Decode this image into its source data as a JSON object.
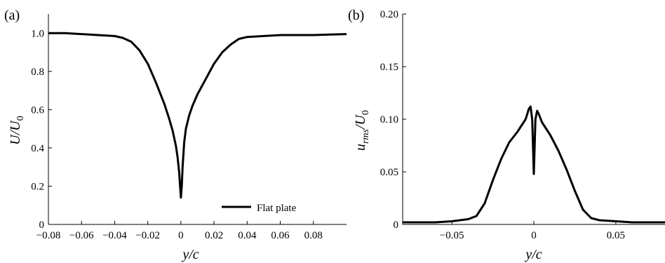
{
  "chart_data": [
    {
      "type": "line",
      "panel_label": "(a)",
      "xlabel": "y/c",
      "ylabel": "U/U0",
      "xlim": [
        -0.08,
        0.1
      ],
      "ylim": [
        0,
        1.1
      ],
      "xticks": [
        -0.08,
        -0.06,
        -0.04,
        -0.02,
        0,
        0.02,
        0.04,
        0.06,
        0.08
      ],
      "xtick_labels": [
        "−0.08",
        "−0.06",
        "−0.04",
        "−0.02",
        "0",
        "0.02",
        "0.04",
        "0.06",
        "0.08"
      ],
      "yticks": [
        0,
        0.2,
        0.4,
        0.6,
        0.8,
        1.0
      ],
      "ytick_labels": [
        "0",
        "0.2",
        "0.4",
        "0.6",
        "0.8",
        "1.0"
      ],
      "grid": false,
      "legend_position": "bottom-right",
      "series": [
        {
          "name": "Flat plate",
          "x": [
            -0.08,
            -0.07,
            -0.06,
            -0.05,
            -0.04,
            -0.035,
            -0.03,
            -0.025,
            -0.02,
            -0.015,
            -0.01,
            -0.007,
            -0.005,
            -0.003,
            -0.002,
            -0.001,
            -0.0005,
            0,
            0.0005,
            0.001,
            0.002,
            0.003,
            0.005,
            0.007,
            0.01,
            0.015,
            0.02,
            0.025,
            0.03,
            0.035,
            0.04,
            0.05,
            0.06,
            0.07,
            0.08,
            0.09,
            0.1
          ],
          "y": [
            1.0,
            1.0,
            0.995,
            0.99,
            0.985,
            0.975,
            0.955,
            0.91,
            0.84,
            0.74,
            0.63,
            0.55,
            0.49,
            0.41,
            0.35,
            0.27,
            0.2,
            0.14,
            0.2,
            0.3,
            0.43,
            0.5,
            0.57,
            0.62,
            0.68,
            0.76,
            0.84,
            0.9,
            0.94,
            0.97,
            0.98,
            0.985,
            0.99,
            0.99,
            0.99,
            0.993,
            0.995
          ]
        }
      ]
    },
    {
      "type": "line",
      "panel_label": "(b)",
      "xlabel": "y/c",
      "ylabel": "u_rms/U0",
      "xlim": [
        -0.08,
        0.08
      ],
      "ylim": [
        0,
        0.2
      ],
      "xticks": [
        -0.05,
        0,
        0.05
      ],
      "xtick_labels": [
        "−0.05",
        "0",
        "0.05"
      ],
      "yticks": [
        0,
        0.05,
        0.1,
        0.15,
        0.2
      ],
      "ytick_labels": [
        "0",
        "0.05",
        "0.10",
        "0.15",
        "0.20"
      ],
      "grid": false,
      "series": [
        {
          "name": "",
          "x": [
            -0.08,
            -0.06,
            -0.05,
            -0.04,
            -0.035,
            -0.03,
            -0.025,
            -0.02,
            -0.015,
            -0.01,
            -0.005,
            -0.003,
            -0.002,
            -0.001,
            0,
            0.001,
            0.002,
            0.003,
            0.005,
            0.01,
            0.015,
            0.02,
            0.025,
            0.03,
            0.035,
            0.04,
            0.05,
            0.06,
            0.07,
            0.08
          ],
          "y": [
            0.002,
            0.002,
            0.003,
            0.005,
            0.008,
            0.02,
            0.042,
            0.062,
            0.078,
            0.088,
            0.1,
            0.11,
            0.112,
            0.1,
            0.048,
            0.1,
            0.108,
            0.105,
            0.097,
            0.085,
            0.07,
            0.052,
            0.032,
            0.014,
            0.006,
            0.004,
            0.003,
            0.002,
            0.002,
            0.002
          ]
        }
      ]
    }
  ]
}
